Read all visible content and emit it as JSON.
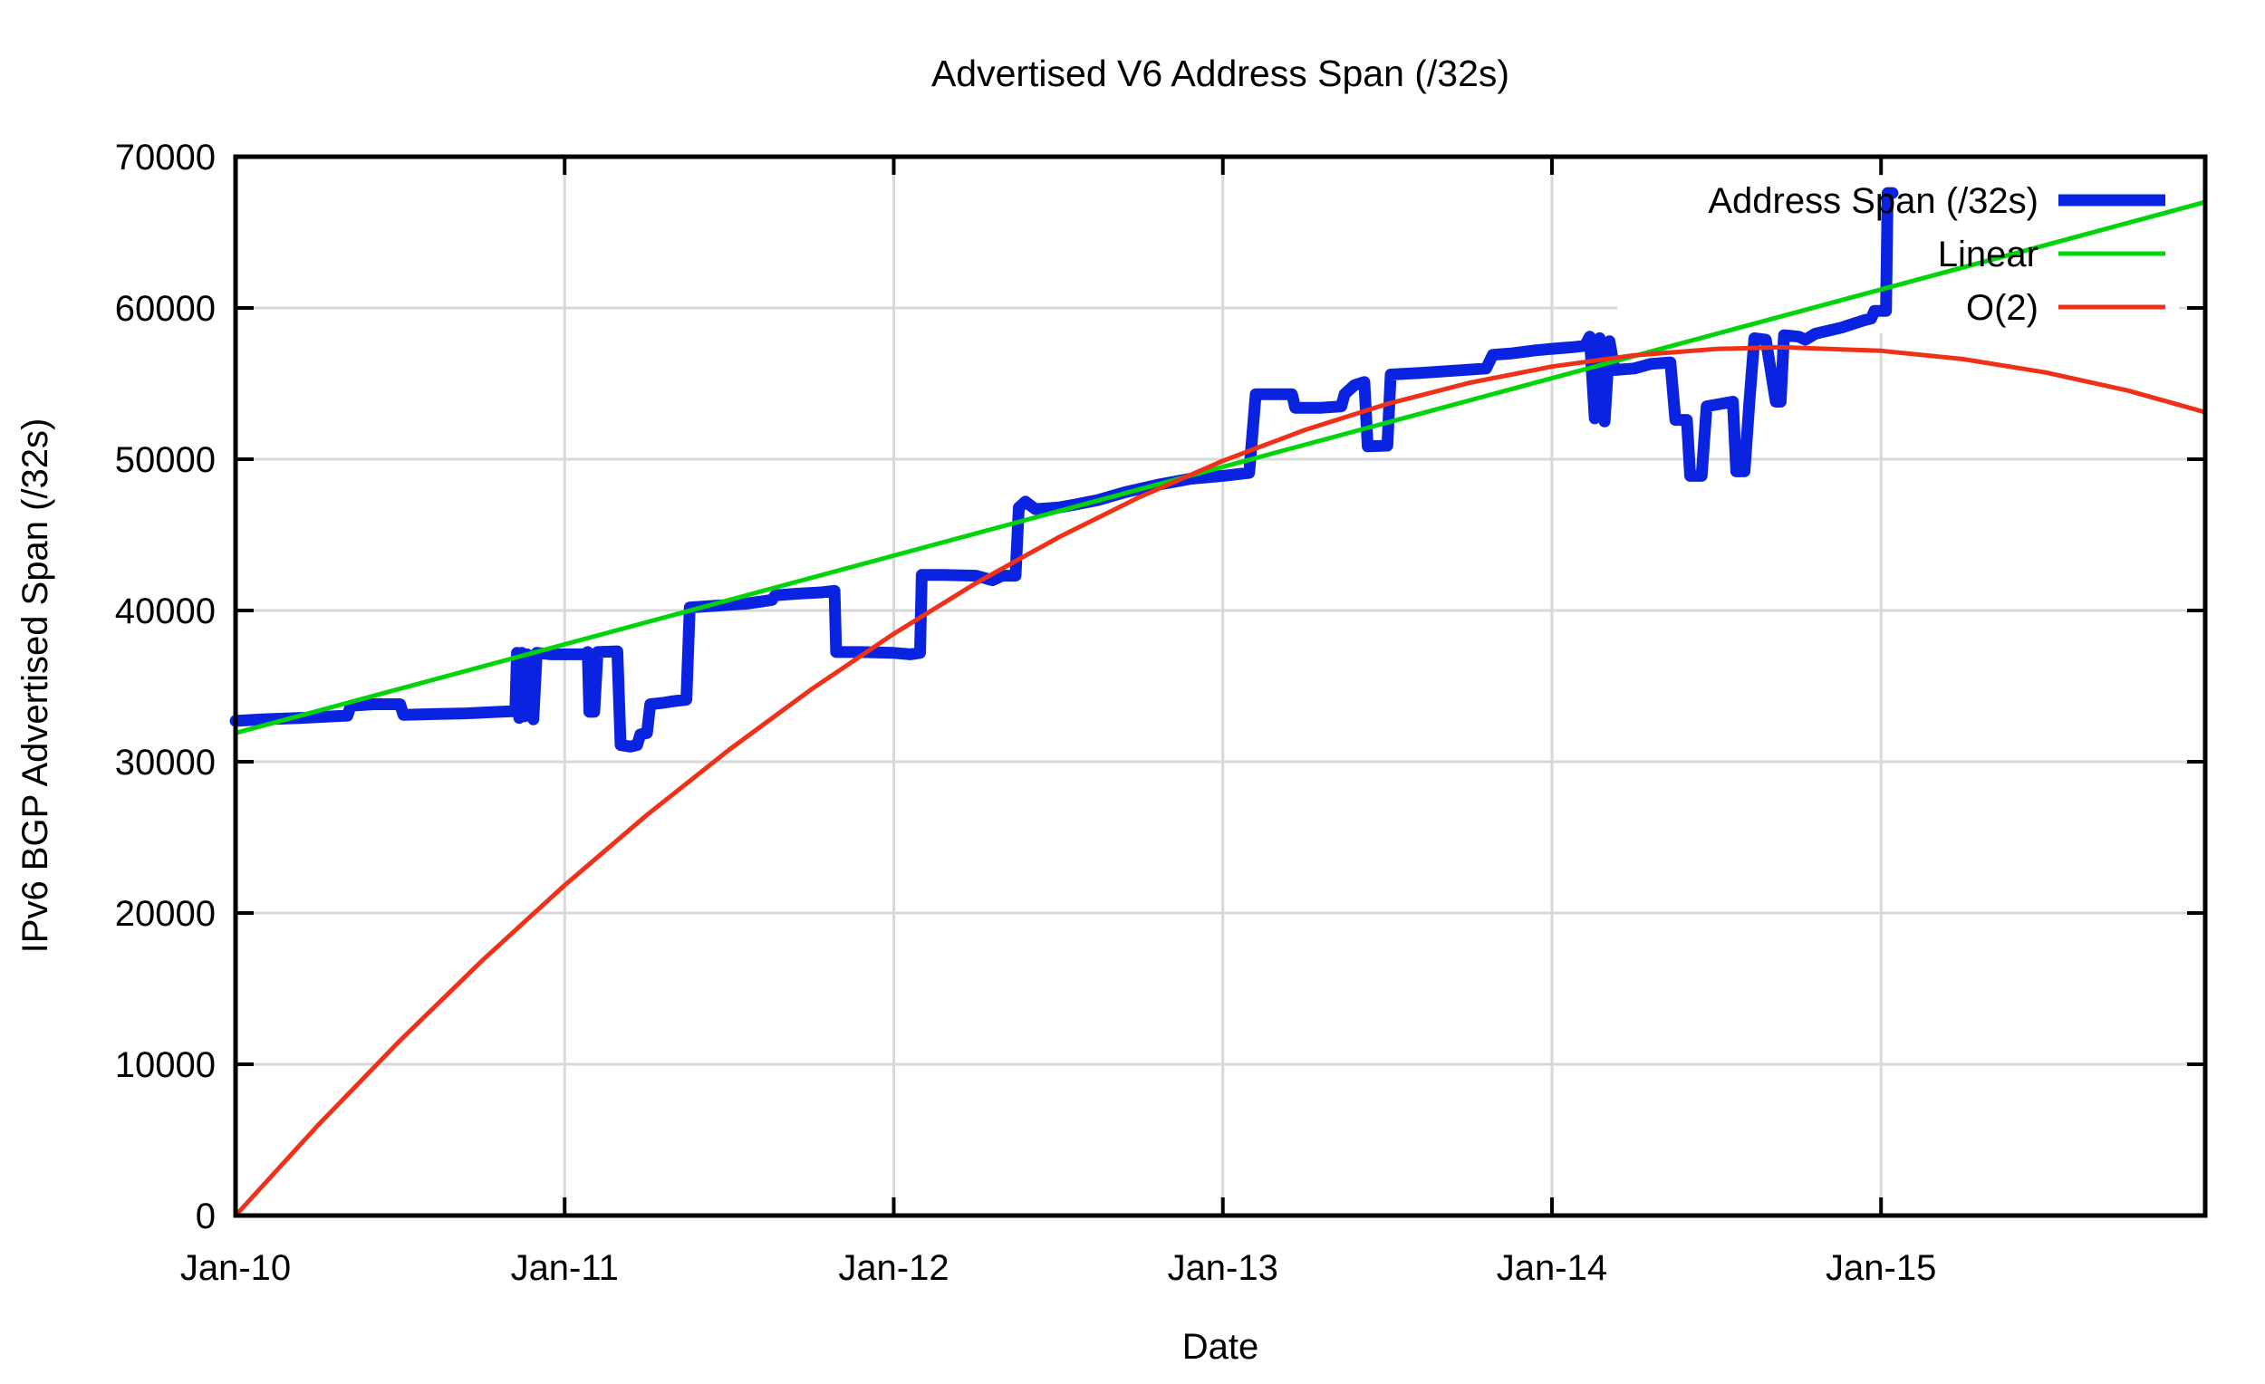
{
  "chart_data": {
    "type": "line",
    "title": "Advertised V6 Address Span (/32s)",
    "xlabel": "Date",
    "ylabel": "IPv6 BGP Advertised Span (/32s)",
    "x_tick_labels": [
      "Jan-10",
      "Jan-11",
      "Jan-12",
      "Jan-13",
      "Jan-14",
      "Jan-15"
    ],
    "x_tick_years": [
      0,
      1,
      2,
      3,
      4,
      5
    ],
    "y_ticks": [
      0,
      10000,
      20000,
      30000,
      40000,
      50000,
      60000,
      70000
    ],
    "x_range_years": [
      0,
      5.985
    ],
    "ylim": [
      0,
      70000
    ],
    "grid": true,
    "legend_position": "top-right",
    "colors": {
      "address_span": "#0a23e0",
      "linear": "#02d40a",
      "o2": "#ee3118",
      "gridline": "#d8d8d8",
      "border": "#000000"
    },
    "series": [
      {
        "name": "Address Span (/32s)",
        "color": "#0a23e0",
        "width": 13,
        "points": [
          [
            0.0,
            32700
          ],
          [
            0.08,
            32800
          ],
          [
            0.2,
            32900
          ],
          [
            0.34,
            33050
          ],
          [
            0.35,
            33700
          ],
          [
            0.42,
            33800
          ],
          [
            0.5,
            33800
          ],
          [
            0.51,
            33100
          ],
          [
            0.6,
            33150
          ],
          [
            0.7,
            33200
          ],
          [
            0.8,
            33300
          ],
          [
            0.85,
            33350
          ],
          [
            0.855,
            37200
          ],
          [
            0.862,
            32900
          ],
          [
            0.87,
            37200
          ],
          [
            0.878,
            33000
          ],
          [
            0.886,
            37100
          ],
          [
            0.895,
            36000
          ],
          [
            0.905,
            32800
          ],
          [
            0.915,
            37200
          ],
          [
            0.96,
            37100
          ],
          [
            1.06,
            37100
          ],
          [
            1.07,
            37250
          ],
          [
            1.075,
            33300
          ],
          [
            1.09,
            33300
          ],
          [
            1.1,
            37250
          ],
          [
            1.16,
            37300
          ],
          [
            1.17,
            31100
          ],
          [
            1.2,
            31000
          ],
          [
            1.22,
            31100
          ],
          [
            1.23,
            31800
          ],
          [
            1.25,
            31900
          ],
          [
            1.26,
            33800
          ],
          [
            1.3,
            33900
          ],
          [
            1.33,
            34000
          ],
          [
            1.37,
            34100
          ],
          [
            1.38,
            40200
          ],
          [
            1.45,
            40300
          ],
          [
            1.55,
            40450
          ],
          [
            1.6,
            40600
          ],
          [
            1.63,
            40700
          ],
          [
            1.64,
            41000
          ],
          [
            1.7,
            41100
          ],
          [
            1.78,
            41200
          ],
          [
            1.82,
            41300
          ],
          [
            1.825,
            37250
          ],
          [
            1.9,
            37250
          ],
          [
            2.0,
            37200
          ],
          [
            2.05,
            37100
          ],
          [
            2.08,
            37200
          ],
          [
            2.085,
            42350
          ],
          [
            2.15,
            42350
          ],
          [
            2.25,
            42300
          ],
          [
            2.3,
            42000
          ],
          [
            2.33,
            42300
          ],
          [
            2.37,
            42300
          ],
          [
            2.38,
            46800
          ],
          [
            2.4,
            47200
          ],
          [
            2.43,
            46700
          ],
          [
            2.5,
            46800
          ],
          [
            2.55,
            47000
          ],
          [
            2.62,
            47300
          ],
          [
            2.7,
            47800
          ],
          [
            2.8,
            48300
          ],
          [
            2.9,
            48700
          ],
          [
            3.0,
            48900
          ],
          [
            3.08,
            49100
          ],
          [
            3.1,
            54300
          ],
          [
            3.21,
            54300
          ],
          [
            3.22,
            53400
          ],
          [
            3.3,
            53400
          ],
          [
            3.36,
            53500
          ],
          [
            3.37,
            54300
          ],
          [
            3.4,
            54900
          ],
          [
            3.43,
            55100
          ],
          [
            3.44,
            50850
          ],
          [
            3.5,
            50900
          ],
          [
            3.51,
            55600
          ],
          [
            3.6,
            55700
          ],
          [
            3.7,
            55850
          ],
          [
            3.8,
            56000
          ],
          [
            3.82,
            56900
          ],
          [
            3.88,
            57000
          ],
          [
            3.95,
            57200
          ],
          [
            4.0,
            57300
          ],
          [
            4.06,
            57400
          ],
          [
            4.1,
            57500
          ],
          [
            4.115,
            58100
          ],
          [
            4.13,
            52700
          ],
          [
            4.145,
            58000
          ],
          [
            4.16,
            52500
          ],
          [
            4.175,
            57800
          ],
          [
            4.19,
            55900
          ],
          [
            4.25,
            56000
          ],
          [
            4.3,
            56300
          ],
          [
            4.36,
            56400
          ],
          [
            4.375,
            52600
          ],
          [
            4.41,
            52600
          ],
          [
            4.42,
            48900
          ],
          [
            4.455,
            48900
          ],
          [
            4.47,
            53500
          ],
          [
            4.55,
            53800
          ],
          [
            4.56,
            49200
          ],
          [
            4.585,
            49200
          ],
          [
            4.6,
            53800
          ],
          [
            4.615,
            58000
          ],
          [
            4.65,
            57900
          ],
          [
            4.68,
            53800
          ],
          [
            4.695,
            53800
          ],
          [
            4.705,
            58200
          ],
          [
            4.75,
            58100
          ],
          [
            4.77,
            57900
          ],
          [
            4.8,
            58300
          ],
          [
            4.88,
            58700
          ],
          [
            4.95,
            59200
          ],
          [
            4.97,
            59300
          ],
          [
            4.98,
            59800
          ],
          [
            5.015,
            59800
          ],
          [
            5.02,
            67600
          ],
          [
            5.035,
            67600
          ]
        ]
      },
      {
        "name": "Linear",
        "color": "#02d40a",
        "width": 5,
        "points": [
          [
            0,
            31900
          ],
          [
            5.985,
            67000
          ]
        ]
      },
      {
        "name": "O(2)",
        "color": "#ee3118",
        "width": 5,
        "points": [
          [
            0,
            0
          ],
          [
            0.25,
            5956
          ],
          [
            0.5,
            11571
          ],
          [
            0.75,
            16870
          ],
          [
            1,
            21833
          ],
          [
            1.25,
            26483
          ],
          [
            1.5,
            30796
          ],
          [
            1.75,
            34794
          ],
          [
            2,
            38459
          ],
          [
            2.25,
            41808
          ],
          [
            2.5,
            44826
          ],
          [
            2.75,
            47524
          ],
          [
            3,
            49892
          ],
          [
            3.25,
            51938
          ],
          [
            3.5,
            53659
          ],
          [
            3.75,
            55055
          ],
          [
            4,
            56127
          ],
          [
            4.25,
            56874
          ],
          [
            4.5,
            57296
          ],
          [
            4.7,
            57400
          ],
          [
            5,
            57166
          ],
          [
            5.25,
            56614
          ],
          [
            5.5,
            55737
          ],
          [
            5.75,
            54536
          ],
          [
            5.985,
            53110
          ]
        ]
      }
    ]
  }
}
